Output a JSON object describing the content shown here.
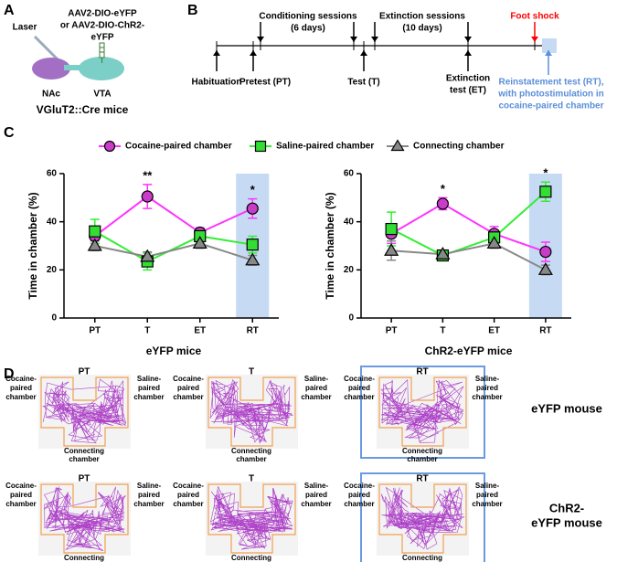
{
  "panel_a": {
    "letter": "A",
    "laser": "Laser",
    "virus": [
      "AAV2-DIO-eYFP",
      "or AAV2-DIO-ChR2-",
      "eYFP"
    ],
    "nac": "NAc",
    "vta": "VTA",
    "mice": "VGluT2::Cre mice"
  },
  "panel_b": {
    "letter": "B",
    "above": [
      {
        "lines": [
          "Conditioning sessions",
          "(6 days)"
        ],
        "color": "#000000"
      },
      {
        "lines": [
          "Extinction sessions",
          "(10 days)"
        ],
        "color": "#000000"
      },
      {
        "lines": [
          "Foot shock"
        ],
        "color": "#ff0000"
      }
    ],
    "below": [
      {
        "lines": [
          "Habituation"
        ],
        "color": "#000000"
      },
      {
        "lines": [
          "Pretest (PT)"
        ],
        "color": "#000000"
      },
      {
        "lines": [
          "Test (T)"
        ],
        "color": "#000000"
      },
      {
        "lines": [
          "Extinction",
          "test (ET)"
        ],
        "color": "#000000"
      },
      {
        "lines": [
          "Reinstatement test (RT),",
          "with photostimulation in",
          "cocaine-paired chamber"
        ],
        "color": "#5b8fd9"
      }
    ]
  },
  "panel_c_letter": "C",
  "chart_data": [
    {
      "type": "line",
      "xlabel": "eYFP mice",
      "ylabel": "Time in chamber (%)",
      "categories": [
        "PT",
        "T",
        "ET",
        "RT"
      ],
      "ylim": [
        0,
        60
      ],
      "yticks": [
        0,
        20,
        40,
        60
      ],
      "highlight": "RT",
      "highlight_color": "#c6daf3",
      "series": [
        {
          "name": "Cocaine-paired chamber",
          "color": "#ff33ff",
          "marker": "circle",
          "marker_color": "#c83cc8",
          "values": [
            34,
            50.5,
            35.5,
            45.5
          ],
          "errors": [
            3,
            5,
            2,
            4
          ]
        },
        {
          "name": "Saline-paired chamber",
          "color": "#33ee33",
          "marker": "square",
          "marker_color": "#33dd33",
          "values": [
            36,
            23.5,
            34,
            30.5
          ],
          "errors": [
            5,
            3.5,
            3,
            3.5
          ]
        },
        {
          "name": "Connecting chamber",
          "color": "#888888",
          "marker": "triangle",
          "marker_color": "#888888",
          "values": [
            30,
            25.5,
            31,
            24
          ],
          "errors": [
            2,
            2,
            2,
            2
          ]
        }
      ],
      "annotations": [
        {
          "category": "T",
          "text": "**"
        },
        {
          "category": "RT",
          "text": "*"
        }
      ]
    },
    {
      "type": "line",
      "xlabel": "ChR2-eYFP mice",
      "ylabel": "Time in chamber (%)",
      "categories": [
        "PT",
        "T",
        "ET",
        "RT"
      ],
      "ylim": [
        0,
        60
      ],
      "yticks": [
        0,
        20,
        40,
        60
      ],
      "highlight": "RT",
      "highlight_color": "#c6daf3",
      "series": [
        {
          "name": "Cocaine-paired chamber",
          "color": "#ff33ff",
          "marker": "circle",
          "marker_color": "#c83cc8",
          "values": [
            35,
            47.5,
            35,
            27.5
          ],
          "errors": [
            4,
            2.5,
            3,
            4
          ]
        },
        {
          "name": "Saline-paired chamber",
          "color": "#33ee33",
          "marker": "square",
          "marker_color": "#33dd33",
          "values": [
            37,
            26,
            33.5,
            52.5
          ],
          "errors": [
            7,
            1.5,
            3,
            4
          ]
        },
        {
          "name": "Connecting chamber",
          "color": "#888888",
          "marker": "triangle",
          "marker_color": "#888888",
          "values": [
            28,
            26.5,
            31,
            20
          ],
          "errors": [
            4,
            1,
            2,
            2
          ]
        }
      ],
      "annotations": [
        {
          "category": "T",
          "text": "*"
        },
        {
          "category": "RT",
          "text": "*"
        }
      ]
    }
  ],
  "panel_d": {
    "letter": "D",
    "left_label": [
      "Cocaine-",
      "paired",
      "chamber"
    ],
    "right_label": [
      "Saline-",
      "paired",
      "chamber"
    ],
    "bottom_label": [
      "Connecting",
      "chamber"
    ],
    "sessions": [
      "PT",
      "T",
      "RT"
    ],
    "rows": [
      {
        "label": [
          "eYFP mouse"
        ]
      },
      {
        "label": [
          "ChR2-",
          "eYFP mouse"
        ]
      }
    ]
  }
}
